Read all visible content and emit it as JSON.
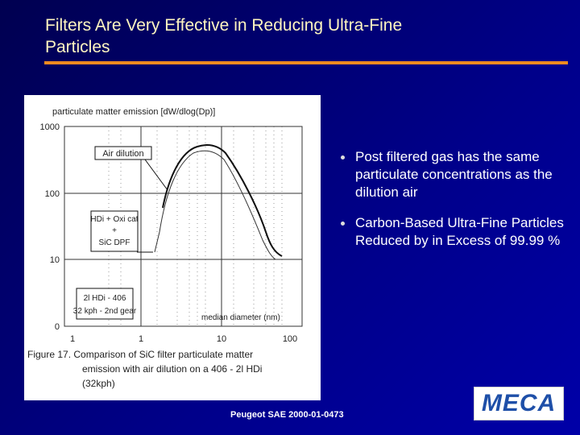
{
  "title": [
    "Filters Are Very Effective in Reducing Ultra-Fine",
    "Particles"
  ],
  "figure": {
    "y_axis_label": "particulate matter emission [dW/dlog(Dp)]",
    "y_ticks": [
      "1000",
      "100",
      "10",
      "0"
    ],
    "x_ticks": [
      "1",
      "1",
      "10",
      "100"
    ],
    "x_axis_label": "median diameter (nm)",
    "annotations": [
      [
        "Air dilution"
      ],
      [
        "HDi + Oxi cat",
        "+",
        "SiC DPF"
      ],
      [
        "2l HDi - 406",
        "32 kph - 2nd gear"
      ]
    ],
    "caption": [
      "Figure 17.  Comparison of SiC filter particulate matter",
      "emission with air dilution on a 406 - 2l HDi",
      "(32kph)"
    ]
  },
  "bullets": [
    "Post filtered gas has the same particulate concentrations as the dilution air",
    "Carbon-Based Ultra-Fine Particles Reduced by in Excess of 99.99 %"
  ],
  "footer": "Peugeot  SAE 2000-01-0473",
  "logo": "MECA"
}
